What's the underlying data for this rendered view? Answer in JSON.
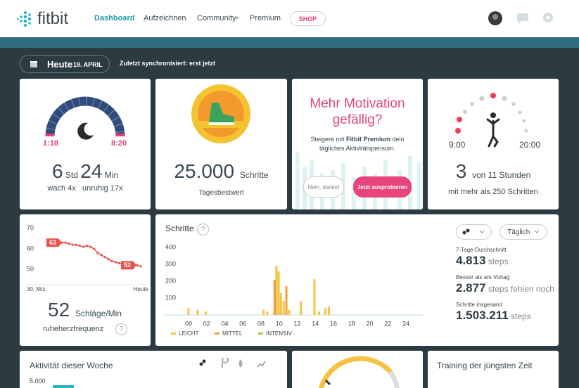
{
  "nav": {
    "logo": "fitbit",
    "links": [
      "Dashboard",
      "Aufzeichnen",
      "Community",
      "Premium"
    ],
    "shop": "SHOP"
  },
  "date_bar": {
    "day": "Heute",
    "date": "19. APRIL",
    "sync": "Zuletzt synchronisiert: erst jetzt"
  },
  "sleep": {
    "start": "1:18",
    "end": "8:20",
    "hours": "6",
    "hours_unit": "Std",
    "minutes": "24",
    "minutes_unit": "Min",
    "awake": "wach 4x",
    "restless": "unruhig 17x"
  },
  "best": {
    "value": "25.000",
    "unit": "Schritte",
    "caption": "Tagesbestwert"
  },
  "premium": {
    "title": "Mehr Motivation gefällig?",
    "text_before": "Steigere mit",
    "brand": "Fitbit Premium",
    "text_after": "dein tägliches Aktivitätspensum.",
    "decline": "Nein, danke!",
    "accept": "Jetzt ausprobieren"
  },
  "hourly": {
    "start": "9:00",
    "end": "20:00",
    "count": "3",
    "of": "von 11 Stunden",
    "caption": "mit mehr als 250 Schritten"
  },
  "heart": {
    "chart": {
      "type": "line",
      "color": "#e8524a",
      "values": [
        63,
        63,
        62.5,
        62,
        62,
        61.5,
        61,
        61.5,
        61,
        60,
        58,
        57,
        56,
        55,
        54,
        53.5,
        53,
        53,
        52.5,
        52.5,
        52,
        52,
        51.5
      ],
      "ylim": [
        48,
        72
      ],
      "yticks": [
        50,
        60,
        70
      ],
      "callouts": [
        63,
        52
      ],
      "x_start": "30. Mrz",
      "x_end": "Heute"
    },
    "value": "52",
    "unit": "Schläge/Min",
    "caption": "ruheherzfrequenz",
    "help": "?"
  },
  "steps_chart": {
    "type": "bar",
    "title": "Schritte",
    "help": "?",
    "ylim": [
      0,
      400
    ],
    "yticks": [
      100,
      200,
      300,
      400
    ],
    "xlim": [
      0,
      24
    ],
    "xticks": [
      {
        "value": 0,
        "label": "00"
      },
      {
        "value": 2,
        "label": "02"
      },
      {
        "value": 4,
        "label": "04"
      },
      {
        "value": 6,
        "label": "06"
      },
      {
        "value": 8,
        "label": "08"
      },
      10,
      12,
      14,
      16,
      18,
      20,
      22,
      24
    ],
    "series": [
      {
        "name": "LEICHT",
        "color": "#f5c342",
        "x": [
          0,
          1,
          1.9,
          8.3,
          8.7,
          9.7,
          9.95,
          10.2,
          10.5,
          11.1,
          12.4,
          13.9,
          14.4,
          15.1,
          15.5
        ],
        "values": [
          40,
          30,
          20,
          30,
          20,
          292,
          258,
          130,
          83,
          30,
          80,
          212,
          20,
          40,
          50
        ]
      },
      {
        "name": "MITTEL",
        "color": "#f39a3c",
        "x": [
          9.5,
          10.8
        ],
        "values": [
          208,
          170
        ]
      },
      {
        "name": "INTENSIV",
        "color": "#a3cf3c",
        "x": [],
        "values": []
      }
    ],
    "period": "Täglich"
  },
  "stats": [
    {
      "label": "7-Tage-Durchschnitt",
      "value": "4.813",
      "unit": "steps"
    },
    {
      "label": "Besser als am Vortag",
      "value": "2.877",
      "unit": "steps fehlen noch"
    },
    {
      "label": "Schritte insgesamt",
      "value": "1.503.211",
      "unit": "steps"
    }
  ],
  "week": {
    "title": "Aktivität dieser Woche",
    "axis_label": "5.000"
  },
  "training": {
    "title": "Training der jüngsten Zeit"
  }
}
